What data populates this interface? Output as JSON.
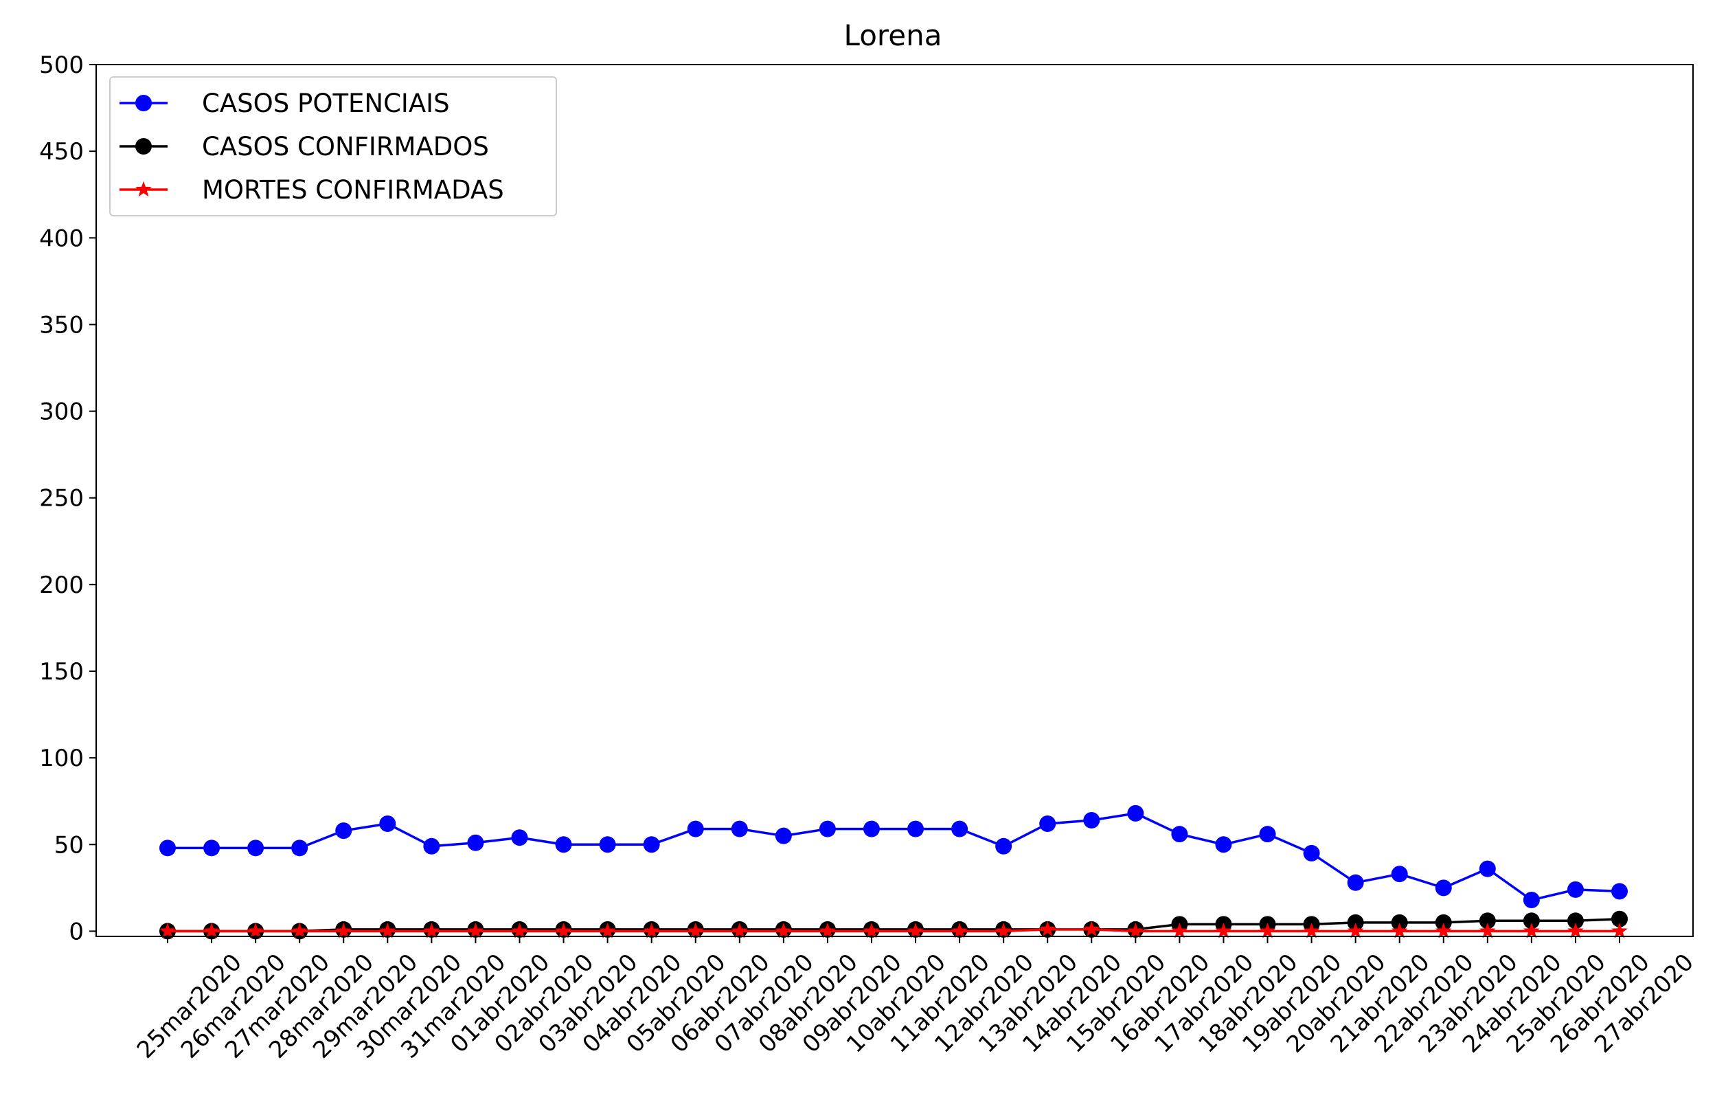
{
  "chart_data": {
    "type": "line",
    "title": "Lorena",
    "xlabel": "",
    "ylabel": "",
    "ylim": [
      -3,
      500
    ],
    "yticks": [
      0,
      50,
      100,
      150,
      200,
      250,
      300,
      350,
      400,
      450,
      500
    ],
    "grid": false,
    "legend_position": "top-left",
    "categories": [
      "25mar2020",
      "26mar2020",
      "27mar2020",
      "28mar2020",
      "29mar2020",
      "30mar2020",
      "31mar2020",
      "01abr2020",
      "02abr2020",
      "03abr2020",
      "04abr2020",
      "05abr2020",
      "06abr2020",
      "07abr2020",
      "08abr2020",
      "09abr2020",
      "10abr2020",
      "11abr2020",
      "12abr2020",
      "13abr2020",
      "14abr2020",
      "15abr2020",
      "16abr2020",
      "17abr2020",
      "18abr2020",
      "19abr2020",
      "20abr2020",
      "21abr2020",
      "22abr2020",
      "23abr2020",
      "24abr2020",
      "25abr2020",
      "26abr2020",
      "27abr2020"
    ],
    "series": [
      {
        "name": "CASOS POTENCIAIS",
        "color": "#0000ff",
        "marker": "circle",
        "values": [
          48,
          48,
          48,
          48,
          58,
          62,
          49,
          51,
          54,
          50,
          50,
          50,
          59,
          59,
          55,
          59,
          59,
          59,
          59,
          49,
          62,
          64,
          68,
          56,
          50,
          56,
          45,
          28,
          33,
          25,
          36,
          18,
          24,
          23
        ]
      },
      {
        "name": "CASOS CONFIRMADOS",
        "color": "#000000",
        "marker": "circle",
        "values": [
          0,
          0,
          0,
          0,
          1,
          1,
          1,
          1,
          1,
          1,
          1,
          1,
          1,
          1,
          1,
          1,
          1,
          1,
          1,
          1,
          1,
          1,
          1,
          4,
          4,
          4,
          4,
          5,
          5,
          5,
          6,
          6,
          6,
          7
        ]
      },
      {
        "name": "MORTES CONFIRMADAS",
        "color": "#ff0000",
        "marker": "star",
        "values": [
          0,
          0,
          0,
          0,
          0,
          0,
          0,
          0,
          0,
          0,
          0,
          0,
          0,
          0,
          0,
          0,
          0,
          0,
          0,
          0,
          1,
          1,
          0,
          0,
          0,
          0,
          0,
          0,
          0,
          0,
          0,
          0,
          0,
          0
        ]
      }
    ]
  }
}
